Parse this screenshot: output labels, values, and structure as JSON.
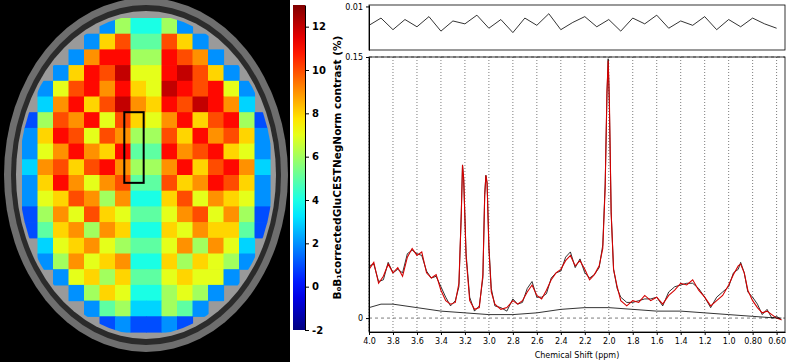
{
  "chart_data": [
    {
      "type": "heatmap",
      "cells": [
        [
          null,
          null,
          null,
          null,
          null,
          2,
          6,
          4,
          4,
          6,
          2,
          null,
          null,
          null,
          null,
          null
        ],
        [
          null,
          null,
          null,
          null,
          2,
          8,
          10,
          5,
          5,
          10,
          8,
          2,
          null,
          null,
          null,
          null
        ],
        [
          null,
          null,
          null,
          2,
          9,
          11,
          11,
          6,
          6,
          11,
          10,
          9,
          2,
          null,
          null,
          null
        ],
        [
          null,
          null,
          2,
          8,
          11,
          10,
          12,
          7,
          7,
          11,
          12,
          10,
          8,
          2,
          null,
          null
        ],
        [
          null,
          2,
          7,
          10,
          11,
          9,
          11,
          8,
          7,
          12,
          11,
          10,
          11,
          7,
          2,
          null
        ],
        [
          null,
          3,
          9,
          11,
          8,
          10,
          12,
          9,
          8,
          11,
          10,
          12,
          11,
          9,
          3,
          null
        ],
        [
          1,
          6,
          10,
          9,
          11,
          7,
          10,
          8,
          7,
          9,
          11,
          8,
          10,
          11,
          6,
          1
        ],
        [
          2,
          8,
          11,
          10,
          7,
          10,
          9,
          6,
          6,
          10,
          8,
          11,
          9,
          10,
          8,
          2
        ],
        [
          2,
          7,
          9,
          11,
          9,
          8,
          11,
          5,
          5,
          11,
          9,
          10,
          11,
          8,
          7,
          2
        ],
        [
          3,
          9,
          10,
          8,
          10,
          11,
          9,
          6,
          6,
          9,
          11,
          8,
          10,
          11,
          9,
          3
        ],
        [
          2,
          8,
          11,
          9,
          7,
          9,
          10,
          5,
          5,
          10,
          8,
          9,
          11,
          10,
          8,
          2
        ],
        [
          2,
          7,
          8,
          10,
          9,
          6,
          9,
          4,
          4,
          8,
          10,
          7,
          9,
          8,
          7,
          2
        ],
        [
          1,
          6,
          9,
          7,
          10,
          8,
          7,
          5,
          5,
          7,
          9,
          10,
          7,
          9,
          6,
          1
        ],
        [
          1,
          5,
          8,
          9,
          6,
          9,
          8,
          4,
          4,
          8,
          7,
          9,
          8,
          8,
          5,
          1
        ],
        [
          null,
          3,
          7,
          8,
          9,
          7,
          6,
          5,
          5,
          7,
          9,
          6,
          9,
          7,
          3,
          null
        ],
        [
          null,
          2,
          6,
          9,
          7,
          8,
          9,
          4,
          4,
          8,
          6,
          8,
          7,
          6,
          2,
          null
        ],
        [
          null,
          null,
          2,
          7,
          8,
          6,
          8,
          5,
          5,
          7,
          8,
          7,
          7,
          2,
          null,
          null
        ],
        [
          null,
          null,
          null,
          2,
          6,
          8,
          7,
          4,
          4,
          6,
          7,
          6,
          2,
          null,
          null,
          null
        ],
        [
          null,
          null,
          null,
          null,
          2,
          5,
          6,
          3,
          3,
          6,
          5,
          2,
          null,
          null,
          null,
          null
        ],
        [
          null,
          null,
          null,
          null,
          null,
          1,
          2,
          1,
          1,
          2,
          1,
          null,
          null,
          null,
          null,
          null
        ]
      ],
      "colorbar_range": [
        -2,
        13
      ],
      "colorbar_ticks": [
        12,
        10,
        8,
        6,
        4,
        2,
        0,
        -2
      ],
      "colorbar_label": "B₀B₁correctedGluCESTNegNorm contrast (%)"
    },
    {
      "type": "line",
      "x": [
        4.0,
        3.96,
        3.92,
        3.88,
        3.84,
        3.8,
        3.76,
        3.72,
        3.68,
        3.64,
        3.6,
        3.56,
        3.52,
        3.48,
        3.44,
        3.4,
        3.36,
        3.32,
        3.28,
        3.25,
        3.23,
        3.22,
        3.21,
        3.19,
        3.16,
        3.12,
        3.08,
        3.05,
        3.035,
        3.025,
        3.015,
        3.0,
        2.98,
        2.95,
        2.9,
        2.85,
        2.8,
        2.76,
        2.72,
        2.68,
        2.64,
        2.6,
        2.56,
        2.52,
        2.48,
        2.44,
        2.4,
        2.36,
        2.32,
        2.28,
        2.24,
        2.2,
        2.16,
        2.12,
        2.08,
        2.05,
        2.03,
        2.015,
        2.005,
        1.995,
        1.98,
        1.96,
        1.93,
        1.9,
        1.85,
        1.8,
        1.75,
        1.7,
        1.65,
        1.6,
        1.55,
        1.5,
        1.45,
        1.4,
        1.35,
        1.3,
        1.25,
        1.2,
        1.15,
        1.1,
        1.05,
        1.0,
        0.96,
        0.92,
        0.9,
        0.87,
        0.84,
        0.8,
        0.76,
        0.72,
        0.68,
        0.64,
        0.6,
        0.56
      ],
      "series": [
        {
          "color": "#000000",
          "values": [
            0.03,
            0.031,
            0.021,
            0.022,
            0.032,
            0.026,
            0.028,
            0.026,
            0.037,
            0.039,
            0.037,
            0.036,
            0.027,
            0.023,
            0.024,
            0.018,
            0.012,
            0.007,
            0.01,
            0.018,
            0.061,
            0.088,
            0.079,
            0.037,
            0.012,
            0.004,
            0.007,
            0.023,
            0.071,
            0.082,
            0.077,
            0.042,
            0.017,
            0.007,
            0.006,
            0.004,
            0.011,
            0.008,
            0.009,
            0.017,
            0.021,
            0.012,
            0.012,
            0.014,
            0.023,
            0.026,
            0.027,
            0.035,
            0.038,
            0.029,
            0.034,
            0.026,
            0.023,
            0.025,
            0.029,
            0.042,
            0.077,
            0.129,
            0.149,
            0.123,
            0.061,
            0.028,
            0.017,
            0.012,
            0.009,
            0.009,
            0.01,
            0.011,
            0.011,
            0.012,
            0.007,
            0.015,
            0.018,
            0.019,
            0.02,
            0.02,
            0.017,
            0.012,
            0.006,
            0.012,
            0.015,
            0.018,
            0.026,
            0.028,
            0.032,
            0.026,
            0.015,
            0.012,
            0.008,
            0.002,
            0.005,
            0,
            0.001,
            -0.001
          ]
        },
        {
          "color": "#d40000",
          "values": [
            0.028,
            0.032,
            0.02,
            0.024,
            0.031,
            0.026,
            0.029,
            0.024,
            0.035,
            0.04,
            0.036,
            0.038,
            0.026,
            0.023,
            0.025,
            0.016,
            0.01,
            0.008,
            0.009,
            0.02,
            0.06,
            0.088,
            0.08,
            0.035,
            0.01,
            0.005,
            0.006,
            0.025,
            0.07,
            0.082,
            0.078,
            0.04,
            0.015,
            0.008,
            0.005,
            0.006,
            0.01,
            0.008,
            0.01,
            0.015,
            0.019,
            0.013,
            0.011,
            0.016,
            0.022,
            0.026,
            0.028,
            0.033,
            0.036,
            0.03,
            0.033,
            0.028,
            0.022,
            0.025,
            0.03,
            0.04,
            0.075,
            0.13,
            0.148,
            0.125,
            0.06,
            0.028,
            0.018,
            0.01,
            0.007,
            0.01,
            0.009,
            0.013,
            0.01,
            0.012,
            0.008,
            0.013,
            0.016,
            0.02,
            0.019,
            0.022,
            0.016,
            0.012,
            0.007,
            0.01,
            0.013,
            0.019,
            0.025,
            0.03,
            0.031,
            0.026,
            0.016,
            0.01,
            0.006,
            0.003,
            0.004,
            0.002,
            0,
            -0.001
          ]
        },
        {
          "color": "#000000",
          "x": [
            4.0,
            3.9,
            3.8,
            3.6,
            3.4,
            3.2,
            3.0,
            2.8,
            2.6,
            2.4,
            2.2,
            2.0,
            1.8,
            1.6,
            1.4,
            1.2,
            1.0,
            0.8,
            0.6,
            0.56
          ],
          "values": [
            0.006,
            0.008,
            0.008,
            0.006,
            0.004,
            0.003,
            0.002,
            0.002,
            0.003,
            0.005,
            0.006,
            0.006,
            0.005,
            0.004,
            0.004,
            0.003,
            0.002,
            0.001,
            0,
            0
          ]
        }
      ],
      "xlim": [
        4.0,
        0.53
      ],
      "ylim": [
        -0.008,
        0.15
      ],
      "xticks": [
        {
          "value": 4,
          "label": "4.0"
        },
        3.8,
        3.6,
        3.4,
        3.2,
        {
          "value": 3,
          "label": "3.0"
        },
        2.8,
        2.6,
        2.4,
        2.2,
        {
          "value": 2,
          "label": "2.0"
        },
        1.8,
        1.6,
        1.4,
        1.2,
        {
          "value": 1,
          "label": "1.0"
        },
        {
          "value": 0.8,
          "label": "0.80"
        },
        {
          "value": 0.6,
          "label": "0.60"
        }
      ],
      "yticks": [
        0,
        0.15
      ],
      "xlabel": "Chemical Shift (ppm)",
      "grid": true
    },
    {
      "type": "line",
      "x": [
        4.0,
        3.9,
        3.8,
        3.7,
        3.6,
        3.5,
        3.4,
        3.3,
        3.2,
        3.1,
        3.0,
        2.9,
        2.8,
        2.7,
        2.6,
        2.5,
        2.4,
        2.3,
        2.2,
        2.1,
        2.0,
        1.9,
        1.8,
        1.7,
        1.6,
        1.5,
        1.4,
        1.3,
        1.2,
        1.1,
        1.0,
        0.9,
        0.8,
        0.7,
        0.6
      ],
      "series": [
        {
          "color": "#000000",
          "values": [
            -0.003,
            0.002,
            -0.006,
            0.001,
            -0.004,
            0.003,
            -0.007,
            0,
            -0.002,
            0.004,
            -0.005,
            0.001,
            -0.008,
            0.002,
            -0.003,
            0.005,
            -0.006,
            -0.001,
            0.003,
            -0.004,
            0.001,
            -0.007,
            0.002,
            -0.002,
            0.004,
            -0.005,
            0,
            -0.003,
            0.003,
            -0.006,
            0.001,
            -0.004,
            0.002,
            -0.002,
            -0.005
          ]
        }
      ],
      "xlim": [
        4.0,
        0.53
      ],
      "ylim": [
        -0.02,
        0.011
      ],
      "yticks": [
        0.01
      ],
      "tick_labels": "y"
    }
  ]
}
